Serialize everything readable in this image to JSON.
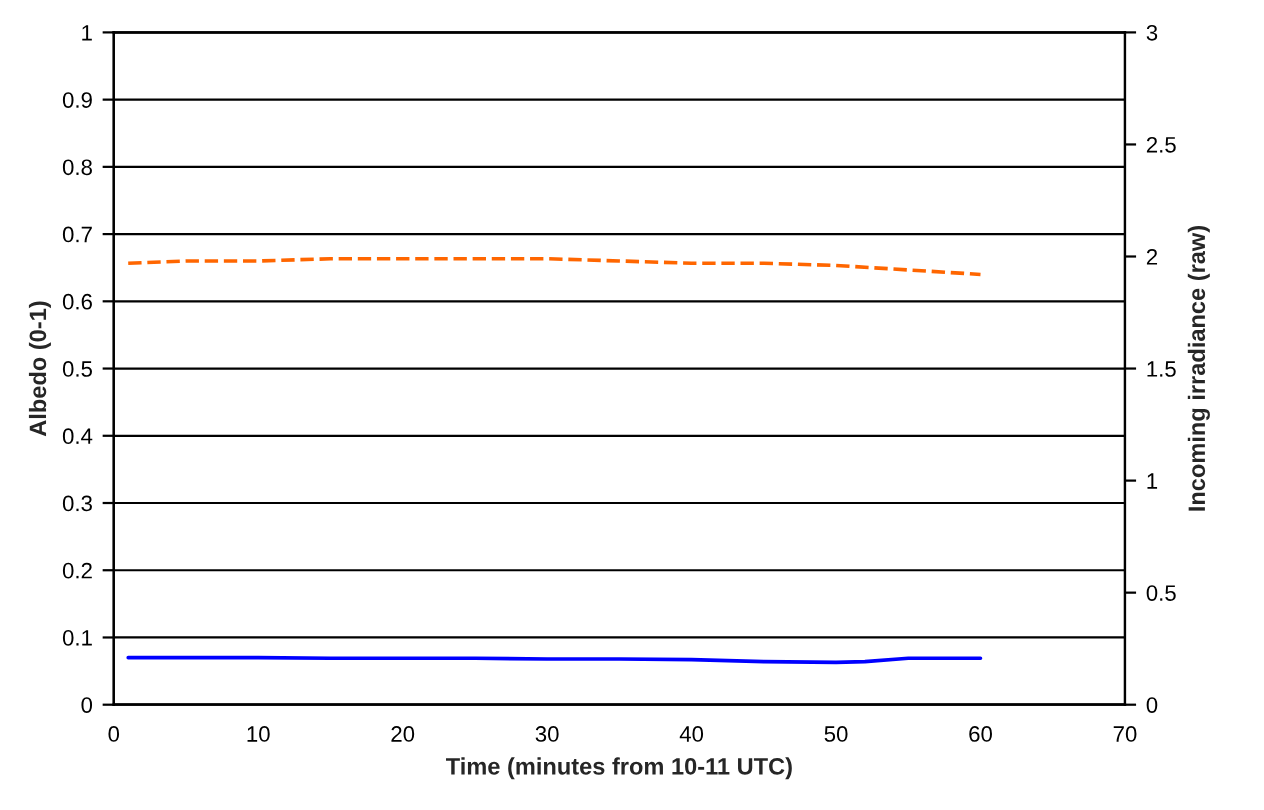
{
  "chart_data": {
    "type": "line",
    "xlabel": "Time (minutes from 10-11 UTC)",
    "ylabel": "Albedo (0-1)",
    "y2label": "Incoming irradiance (raw)",
    "xlim": [
      0,
      70
    ],
    "xticks": [
      0,
      10,
      20,
      30,
      40,
      50,
      60,
      70
    ],
    "ylim": [
      0,
      1
    ],
    "yticks": [
      0,
      0.1,
      0.2,
      0.3,
      0.4,
      0.5,
      0.6,
      0.7,
      0.8,
      0.9,
      1
    ],
    "y2lim": [
      0,
      3
    ],
    "y2ticks": [
      0,
      0.5,
      1,
      1.5,
      2,
      2.5,
      3
    ],
    "grid": "y",
    "legend": false,
    "series": [
      {
        "color": "#0000ff",
        "line_style": "solid",
        "x": [
          1,
          5,
          10,
          15,
          20,
          25,
          30,
          35,
          40,
          45,
          50,
          52,
          55,
          60
        ],
        "values": [
          0.07,
          0.07,
          0.07,
          0.069,
          0.069,
          0.069,
          0.068,
          0.068,
          0.067,
          0.064,
          0.063,
          0.064,
          0.069,
          0.069
        ]
      },
      {
        "color": "#ff6600",
        "line_style": "dashed",
        "axis": "y2",
        "x": [
          1,
          5,
          10,
          15,
          20,
          25,
          30,
          35,
          40,
          45,
          50,
          55,
          60
        ],
        "values": [
          1.97,
          1.98,
          1.98,
          1.99,
          1.99,
          1.99,
          1.99,
          1.98,
          1.97,
          1.97,
          1.96,
          1.94,
          1.92
        ]
      }
    ]
  }
}
